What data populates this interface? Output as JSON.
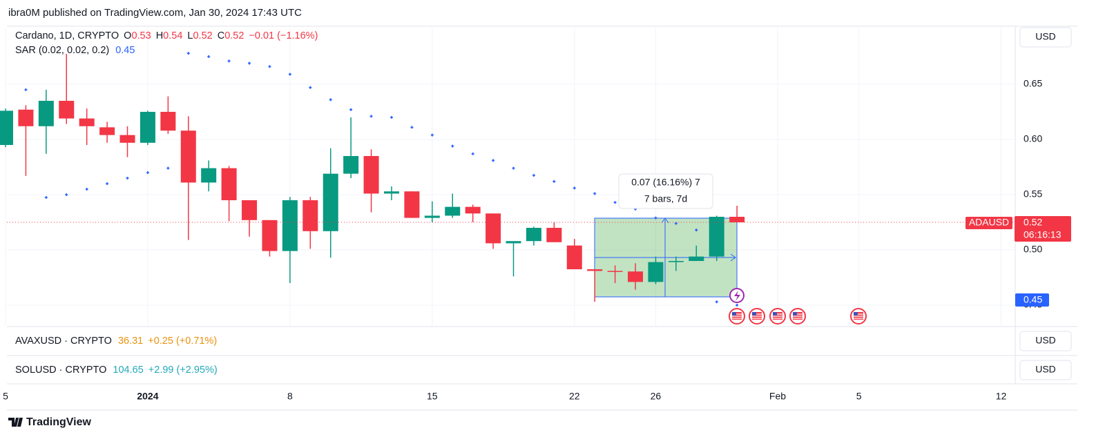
{
  "header": {
    "published": "ibra0M published on TradingView.com, Jan 30, 2024 17:43 UTC"
  },
  "chart_data": {
    "type": "candlestick",
    "legend": {
      "symbol": "Cardano, 1D, CRYPTO",
      "o_label": "O",
      "o": 0.53,
      "h_label": "H",
      "h": 0.54,
      "l_label": "L",
      "l": 0.52,
      "c_label": "C",
      "c": 0.52,
      "change": "−0.01 (−1.16%)"
    },
    "indicator": {
      "name": "SAR (0.02, 0.02, 0.2)",
      "value": 0.45
    },
    "currency": "USD",
    "up_color": "#089981",
    "down_color": "#f23645",
    "sar_color": "#2962ff",
    "categories": [
      "5",
      null,
      null,
      null,
      null,
      null,
      null,
      "2024",
      null,
      null,
      null,
      null,
      null,
      null,
      "8",
      null,
      null,
      null,
      null,
      null,
      null,
      "15",
      null,
      null,
      null,
      null,
      null,
      null,
      "22",
      null,
      null,
      null,
      "26",
      null,
      null,
      null,
      null,
      null,
      "Feb",
      null,
      null,
      null,
      "5",
      null,
      null,
      null,
      null,
      null,
      null,
      "12"
    ],
    "open": [
      0.595,
      0.627,
      0.612,
      0.635,
      0.619,
      0.611,
      0.604,
      0.597,
      0.625,
      0.608,
      0.561,
      0.574,
      0.545,
      0.527,
      0.499,
      0.545,
      0.517,
      0.569,
      0.585,
      0.551,
      0.553,
      0.529,
      0.531,
      0.539,
      0.533,
      0.506,
      0.508,
      0.52,
      0.504,
      0.4825,
      0.481,
      0.4805,
      0.471,
      0.489,
      0.49,
      0.494,
      0.53,
      null,
      null,
      null,
      null,
      null,
      null,
      null,
      null,
      null,
      null,
      null,
      null,
      null
    ],
    "high": [
      0.628,
      0.631,
      0.645,
      0.6775,
      0.628,
      0.616,
      0.612,
      0.626,
      0.639,
      0.621,
      0.581,
      0.576,
      0.545,
      0.527,
      0.548,
      0.548,
      0.592,
      0.62,
      0.591,
      0.5575,
      0.553,
      0.544,
      0.551,
      0.541,
      0.533,
      0.506,
      0.521,
      0.525,
      0.51,
      0.4825,
      0.486,
      0.488,
      0.494,
      0.494,
      0.504,
      0.531,
      0.54,
      null,
      null,
      null,
      null,
      null,
      null,
      null,
      null,
      null,
      null,
      null,
      null,
      null
    ],
    "low": [
      0.593,
      0.567,
      0.587,
      0.614,
      0.595,
      0.597,
      0.584,
      0.595,
      0.605,
      0.509,
      0.553,
      0.526,
      0.512,
      0.494,
      0.47,
      0.501,
      0.493,
      0.565,
      0.534,
      0.545,
      0.529,
      0.525,
      0.529,
      0.525,
      0.501,
      0.476,
      0.504,
      0.507,
      0.4825,
      0.453,
      0.47,
      0.464,
      0.469,
      0.481,
      0.49,
      0.49,
      0.525,
      null,
      null,
      null,
      null,
      null,
      null,
      null,
      null,
      null,
      null,
      null,
      null,
      null
    ],
    "close": [
      0.626,
      0.612,
      0.635,
      0.619,
      0.612,
      0.604,
      0.597,
      0.625,
      0.608,
      0.561,
      0.574,
      0.545,
      0.527,
      0.499,
      0.545,
      0.517,
      0.569,
      0.585,
      0.551,
      0.553,
      0.529,
      0.531,
      0.539,
      0.533,
      0.506,
      0.508,
      0.52,
      0.507,
      0.4825,
      0.481,
      0.4805,
      0.471,
      0.489,
      0.49,
      0.494,
      0.53,
      0.525,
      null,
      null,
      null,
      null,
      null,
      null,
      null,
      null,
      null,
      null,
      null,
      null,
      null
    ],
    "sar": [
      null,
      0.645,
      0.5475,
      0.55,
      0.555,
      0.56,
      0.565,
      0.57,
      0.574,
      0.678,
      0.675,
      0.671,
      0.669,
      0.666,
      0.659,
      0.647,
      0.636,
      0.627,
      0.621,
      0.62,
      0.611,
      0.604,
      0.594,
      0.587,
      0.581,
      0.574,
      0.5675,
      0.562,
      0.556,
      0.551,
      0.543,
      0.537,
      0.529,
      0.524,
      0.518,
      0.453,
      0.45,
      null,
      null,
      null,
      null,
      null,
      null,
      null,
      null,
      null,
      null,
      null,
      null,
      null
    ],
    "ylim": [
      0.43125,
      0.70125
    ],
    "yticks": [
      0.45,
      {
        "value": 0.5,
        "label": "0.50"
      },
      0.55,
      {
        "value": 0.6,
        "label": "0.60"
      },
      0.65
    ],
    "grid": true,
    "measure": {
      "line1": "0.07 (16.16%) 7",
      "line2": "7 bars, 7d"
    },
    "price_tags": {
      "symbol": "ADAUSD",
      "last": "0.52",
      "countdown": "06:16:13",
      "sar": "0.45"
    },
    "panels": [
      {
        "symbol": "AVAXUSD · CRYPTO",
        "price": 36.31,
        "change": "+0.25 (+0.71%)",
        "color": "#e8920c",
        "currency": "USD"
      },
      {
        "symbol": "SOLUSD · CRYPTO",
        "price": 104.65,
        "change": "+2.99 (+2.95%)",
        "color": "#22a9b9",
        "currency": "USD"
      }
    ]
  },
  "footer": {
    "brand": "TradingView"
  }
}
